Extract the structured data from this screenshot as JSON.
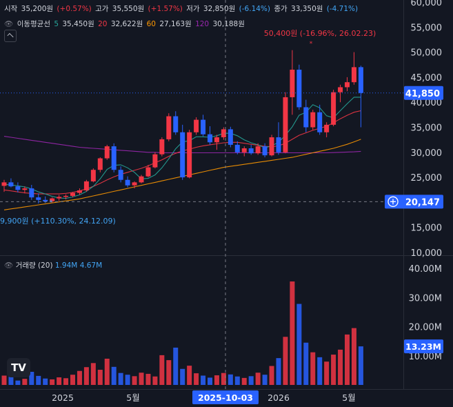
{
  "header": {
    "open_label": "시작",
    "open_value": "35,200원",
    "open_change": "(+0.57%)",
    "high_label": "고가",
    "high_value": "35,550원",
    "high_change": "(+1.57%)",
    "low_label": "저가",
    "low_value": "32,850원",
    "low_change": "(-6.14%)",
    "close_label": "종가",
    "close_value": "33,350원",
    "close_change": "(-4.71%)"
  },
  "ma_legend": {
    "title": "이동평균선",
    "p5": "5",
    "v5": "35,450원",
    "p20": "20",
    "v20": "32,622원",
    "p60": "60",
    "v60": "27,163원",
    "p120": "120",
    "v120": "30,188원"
  },
  "volume_legend": {
    "title": "거래량 (20)",
    "v1": "1.94M",
    "v2": "4.67M"
  },
  "annotations": {
    "high": "50,400원 (-16.96%, 26.02.23)",
    "low": "9,900원 (+110.30%, 24.12.09)"
  },
  "price_axis": {
    "ticks": [
      "60,000",
      "55,000",
      "50,000",
      "45,000",
      "40,000",
      "35,000",
      "30,000",
      "25,000",
      "20,000",
      "15,000",
      "10,000"
    ],
    "current_label": "41,850",
    "crosshair_label": "20,147"
  },
  "volume_axis": {
    "ticks": [
      "40.00M",
      "30.00M",
      "20.00M",
      "10.00M"
    ],
    "current_label": "13.23M"
  },
  "time_axis": {
    "ticks": [
      "2025",
      "5월",
      "2026",
      "5월"
    ],
    "crosshair_label": "2025-10-03"
  },
  "logo_text": "TV",
  "colors": {
    "up": "#f23645",
    "down": "#2962ff",
    "ma5": "#26a69a",
    "ma20": "#f23645",
    "ma60": "#ff9800",
    "ma120": "#9c27b0",
    "background": "#131722"
  },
  "chart_data": {
    "type": "candlestick",
    "ylim": [
      10000,
      60000
    ],
    "volume_ylim_millions": [
      0,
      40
    ],
    "ohlc": [
      [
        23300,
        24500,
        22100,
        24000
      ],
      [
        24000,
        24800,
        23000,
        23200
      ],
      [
        23200,
        24000,
        22000,
        22500
      ],
      [
        22500,
        23200,
        21800,
        22800
      ],
      [
        22800,
        23500,
        20500,
        21000
      ],
      [
        21000,
        21800,
        19800,
        20500
      ],
      [
        20500,
        21200,
        19900,
        20200
      ],
      [
        20200,
        21000,
        19900,
        20800
      ],
      [
        20800,
        21500,
        20300,
        21100
      ],
      [
        21100,
        21600,
        20600,
        21300
      ],
      [
        21300,
        22100,
        21000,
        21900
      ],
      [
        21900,
        22800,
        21500,
        22400
      ],
      [
        22400,
        24500,
        22100,
        24200
      ],
      [
        24200,
        26800,
        24000,
        26500
      ],
      [
        26500,
        29000,
        26000,
        28800
      ],
      [
        28800,
        31500,
        28500,
        31200
      ],
      [
        31200,
        31800,
        26000,
        26500
      ],
      [
        26500,
        27200,
        24000,
        24500
      ],
      [
        24500,
        25200,
        23000,
        23400
      ],
      [
        23400,
        24200,
        22800,
        24000
      ],
      [
        24000,
        25500,
        23800,
        25200
      ],
      [
        25200,
        27500,
        25000,
        27000
      ],
      [
        27000,
        30000,
        26800,
        29600
      ],
      [
        29600,
        33000,
        29200,
        32600
      ],
      [
        32600,
        37800,
        32200,
        37200
      ],
      [
        37200,
        38200,
        33500,
        34000
      ],
      [
        34000,
        35500,
        24500,
        25000
      ],
      [
        25000,
        34500,
        24800,
        34000
      ],
      [
        34000,
        37000,
        33500,
        36500
      ],
      [
        36500,
        37500,
        33200,
        33600
      ],
      [
        33600,
        35200,
        31500,
        32000
      ],
      [
        32000,
        33500,
        30500,
        33000
      ],
      [
        33000,
        35000,
        32500,
        34600
      ],
      [
        34600,
        35100,
        31000,
        31500
      ],
      [
        31500,
        32200,
        29600,
        30000
      ],
      [
        30000,
        31200,
        29200,
        30800
      ],
      [
        30800,
        31500,
        29500,
        29800
      ],
      [
        29800,
        31800,
        29500,
        31200
      ],
      [
        31200,
        31800,
        29000,
        29400
      ],
      [
        29400,
        33500,
        29200,
        33000
      ],
      [
        33000,
        36000,
        29500,
        30000
      ],
      [
        30000,
        42000,
        29800,
        41000
      ],
      [
        41000,
        50400,
        37500,
        46500
      ],
      [
        46500,
        47500,
        38500,
        39000
      ],
      [
        39000,
        40500,
        34000,
        35000
      ],
      [
        35000,
        38500,
        34500,
        38000
      ],
      [
        38000,
        39500,
        33500,
        34000
      ],
      [
        34000,
        36000,
        33000,
        35500
      ],
      [
        35500,
        42500,
        35200,
        42000
      ],
      [
        42000,
        43500,
        40000,
        43000
      ],
      [
        43000,
        45000,
        42200,
        44000
      ],
      [
        44000,
        50000,
        43500,
        47000
      ],
      [
        47000,
        47300,
        35000,
        41850
      ]
    ],
    "volume_millions": [
      3.2,
      2.8,
      1.5,
      2.1,
      4.5,
      3.1,
      2.2,
      1.9,
      2.6,
      2.3,
      3.5,
      4.8,
      6.1,
      7.5,
      5.2,
      9.0,
      6.2,
      4.1,
      3.5,
      3.0,
      4.2,
      3.8,
      2.9,
      10.2,
      8.5,
      12.8,
      5.5,
      6.6,
      4.0,
      3.2,
      2.5,
      3.3,
      4.1,
      3.6,
      2.9,
      2.4,
      3.0,
      4.2,
      3.5,
      6.5,
      9.2,
      16.5,
      35.5,
      27.8,
      14.5,
      11.2,
      9.5,
      8.0,
      10.4,
      12.1,
      17.3,
      19.5,
      13.23
    ],
    "ma5": [
      23600,
      23500,
      23300,
      23100,
      22700,
      22100,
      21700,
      21200,
      20900,
      20800,
      21100,
      21500,
      22200,
      23200,
      24700,
      26600,
      27400,
      27500,
      26900,
      26000,
      24700,
      24800,
      25500,
      26900,
      28700,
      30700,
      32100,
      32300,
      33100,
      33100,
      33000,
      33300,
      33800,
      33800,
      33300,
      32500,
      31900,
      31500,
      30900,
      31300,
      32000,
      33400,
      35100,
      37400,
      38000,
      39500,
      38900,
      37300,
      36900,
      38300,
      39700,
      41000,
      41000
    ],
    "ma20": [
      22500,
      22300,
      22100,
      21900,
      21800,
      21700,
      21700,
      21700,
      21700,
      21800,
      22000,
      22300,
      22700,
      23200,
      23800,
      24500,
      25100,
      25600,
      26000,
      26400,
      26800,
      27300,
      27900,
      28500,
      29200,
      29800,
      30300,
      30600,
      31000,
      31300,
      31500,
      31700,
      31900,
      32000,
      32000,
      31800,
      31600,
      31400,
      31200,
      31100,
      31300,
      31800,
      32600,
      33400,
      33900,
      34400,
      34800,
      35200,
      35900,
      36700,
      37400,
      38000,
      38300
    ],
    "ma60": [
      18500,
      18700,
      18900,
      19100,
      19300,
      19500,
      19700,
      19900,
      20100,
      20300,
      20500,
      20700,
      21000,
      21300,
      21600,
      21900,
      22200,
      22500,
      22800,
      23100,
      23400,
      23700,
      24000,
      24300,
      24600,
      24900,
      25200,
      25500,
      25800,
      26100,
      26400,
      26700,
      27000,
      27200,
      27400,
      27600,
      27800,
      28000,
      28200,
      28400,
      28600,
      28800,
      29000,
      29300,
      29600,
      29900,
      30200,
      30500,
      30800,
      31200,
      31600,
      32100,
      32600
    ],
    "ma120": [
      33200,
      33000,
      32800,
      32600,
      32400,
      32200,
      32000,
      31800,
      31600,
      31400,
      31200,
      31000,
      30900,
      30800,
      30700,
      30600,
      30500,
      30400,
      30300,
      30200,
      30100,
      30000,
      30000,
      29900,
      29900,
      29900,
      29900,
      29900,
      29900,
      29900,
      29900,
      29900,
      29900,
      29900,
      29900,
      29900,
      29900,
      29900,
      29900,
      29900,
      29900,
      29900,
      29900,
      29900,
      29900,
      29900,
      29900,
      29900,
      29950,
      30000,
      30050,
      30100,
      30188
    ]
  }
}
